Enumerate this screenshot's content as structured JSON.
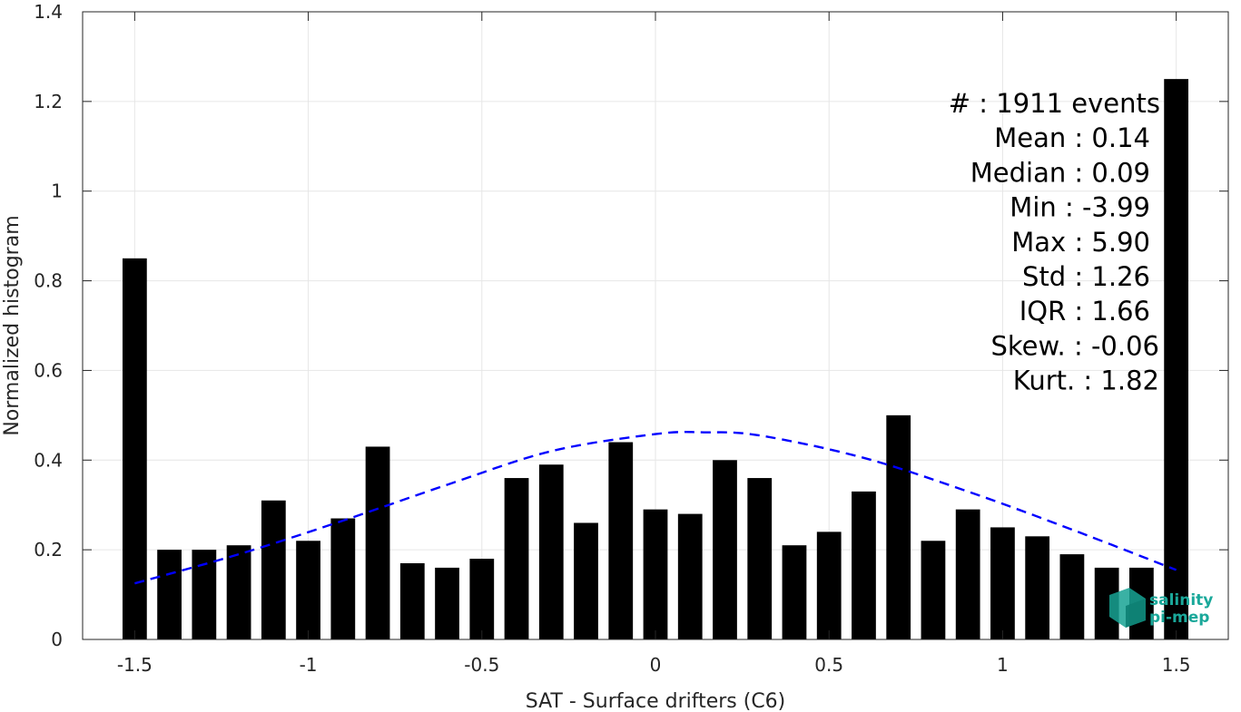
{
  "chart_data": {
    "type": "bar",
    "xlabel": "SAT - Surface drifters (C6)",
    "ylabel": "Normalized histogram",
    "xlim": [
      -1.65,
      1.65
    ],
    "ylim": [
      0,
      1.4
    ],
    "grid": true,
    "x_ticks": [
      -1.5,
      -1,
      -0.5,
      0,
      0.5,
      1,
      1.5
    ],
    "x_tick_labels": [
      "-1.5",
      "-1",
      "-0.5",
      "0",
      "0.5",
      "1",
      "1.5"
    ],
    "y_ticks": [
      0,
      0.2,
      0.4,
      0.6,
      0.8,
      1,
      1.2,
      1.4
    ],
    "y_tick_labels": [
      "0",
      "0.2",
      "0.4",
      "0.6",
      "0.8",
      "1",
      "1.2",
      "1.4"
    ],
    "bar_width": 0.07,
    "bar_color": "#000000",
    "x": [
      -1.5,
      -1.4,
      -1.3,
      -1.2,
      -1.1,
      -1.0,
      -0.9,
      -0.8,
      -0.7,
      -0.6,
      -0.5,
      -0.4,
      -0.3,
      -0.2,
      -0.1,
      0.0,
      0.1,
      0.2,
      0.3,
      0.4,
      0.5,
      0.6,
      0.7,
      0.8,
      0.9,
      1.0,
      1.1,
      1.2,
      1.3,
      1.4,
      1.5
    ],
    "values": [
      0.85,
      0.2,
      0.2,
      0.21,
      0.31,
      0.22,
      0.27,
      0.43,
      0.17,
      0.16,
      0.18,
      0.36,
      0.39,
      0.26,
      0.44,
      0.29,
      0.28,
      0.4,
      0.36,
      0.21,
      0.24,
      0.33,
      0.5,
      0.22,
      0.29,
      0.25,
      0.23,
      0.19,
      0.16,
      0.16,
      1.25
    ],
    "fit_curve": {
      "style": "dashed",
      "color": "#0000ff",
      "x": [
        -1.5,
        -1.2,
        -0.9,
        -0.6,
        -0.3,
        0.0,
        0.14,
        0.3,
        0.6,
        0.9,
        1.2,
        1.5
      ],
      "y": [
        0.125,
        0.19,
        0.265,
        0.345,
        0.42,
        0.458,
        0.462,
        0.455,
        0.405,
        0.33,
        0.245,
        0.155
      ]
    },
    "stats": [
      "#  : 1911 events",
      "Mean : 0.14",
      "Median : 0.09",
      "Min : -3.99",
      "Max : 5.90",
      "Std : 1.26",
      "IQR : 1.66",
      "Skew. : -0.06",
      "Kurt. : 1.82"
    ],
    "logo": {
      "line1": "salinity",
      "line2": "pi-mep",
      "color": "#1aa89a"
    }
  }
}
